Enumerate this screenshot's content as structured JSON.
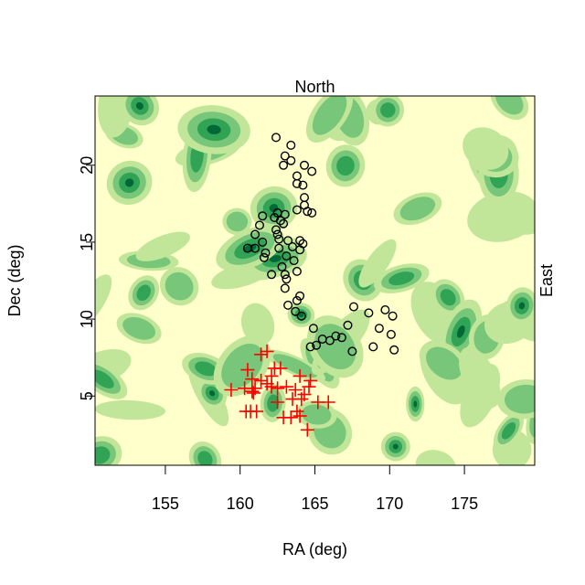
{
  "chart_data": {
    "type": "scatter",
    "title": "North",
    "right_label": "East",
    "xlabel": "RA (deg)",
    "ylabel": "Dec (deg)",
    "xlim": [
      150.3,
      179.7
    ],
    "ylim": [
      0.5,
      24.5
    ],
    "xticks": [
      155,
      160,
      165,
      170,
      175
    ],
    "yticks": [
      5,
      10,
      15,
      20
    ],
    "grid": false,
    "legend": "none",
    "background": {
      "type": "filled-contour",
      "palette": [
        "#ffffcc",
        "#c2e699",
        "#78c679",
        "#31a354",
        "#006837"
      ]
    },
    "series": [
      {
        "marker": "circle",
        "color": "#000000",
        "points": [
          [
            162.4,
            21.8
          ],
          [
            163.4,
            21.3
          ],
          [
            163.0,
            20.6
          ],
          [
            163.4,
            20.3
          ],
          [
            162.9,
            20.0
          ],
          [
            164.3,
            20.0
          ],
          [
            164.8,
            19.6
          ],
          [
            163.8,
            19.3
          ],
          [
            163.8,
            18.8
          ],
          [
            164.2,
            18.7
          ],
          [
            164.3,
            17.9
          ],
          [
            164.3,
            17.4
          ],
          [
            163.8,
            17.1
          ],
          [
            164.5,
            17.0
          ],
          [
            164.8,
            16.9
          ],
          [
            162.5,
            16.9
          ],
          [
            161.5,
            16.7
          ],
          [
            162.3,
            16.6
          ],
          [
            163.0,
            16.8
          ],
          [
            162.7,
            16.4
          ],
          [
            162.9,
            16.2
          ],
          [
            161.3,
            16.1
          ],
          [
            162.4,
            15.8
          ],
          [
            162.5,
            15.5
          ],
          [
            162.6,
            15.2
          ],
          [
            161.0,
            15.5
          ],
          [
            161.5,
            15.0
          ],
          [
            163.2,
            15.1
          ],
          [
            164.0,
            15.1
          ],
          [
            164.2,
            14.9
          ],
          [
            160.5,
            14.6
          ],
          [
            161.0,
            14.6
          ],
          [
            161.7,
            14.3
          ],
          [
            161.6,
            14.0
          ],
          [
            162.6,
            14.6
          ],
          [
            163.5,
            14.7
          ],
          [
            164.0,
            14.5
          ],
          [
            163.1,
            14.1
          ],
          [
            163.6,
            13.8
          ],
          [
            162.8,
            13.4
          ],
          [
            163.0,
            12.9
          ],
          [
            163.1,
            12.6
          ],
          [
            162.1,
            12.9
          ],
          [
            163.8,
            13.1
          ],
          [
            163.0,
            12.0
          ],
          [
            164.0,
            11.5
          ],
          [
            163.8,
            11.2
          ],
          [
            163.2,
            10.9
          ],
          [
            163.7,
            10.5
          ],
          [
            164.1,
            10.2
          ],
          [
            164.9,
            9.4
          ],
          [
            165.5,
            8.7
          ],
          [
            166.0,
            8.6
          ],
          [
            165.1,
            8.3
          ],
          [
            164.7,
            8.2
          ],
          [
            166.4,
            8.9
          ],
          [
            166.8,
            8.8
          ],
          [
            167.2,
            9.6
          ],
          [
            167.6,
            10.8
          ],
          [
            168.6,
            10.4
          ],
          [
            169.7,
            10.6
          ],
          [
            170.2,
            10.2
          ],
          [
            169.3,
            9.4
          ],
          [
            170.1,
            9.0
          ],
          [
            168.9,
            8.2
          ],
          [
            170.3,
            8.0
          ],
          [
            167.5,
            7.9
          ]
        ]
      },
      {
        "marker": "plus",
        "color": "#ff0000",
        "points": [
          [
            161.8,
            7.9
          ],
          [
            161.4,
            7.7
          ],
          [
            162.3,
            6.8
          ],
          [
            162.7,
            6.8
          ],
          [
            160.5,
            6.7
          ],
          [
            160.8,
            6.1
          ],
          [
            162.1,
            6.3
          ],
          [
            161.4,
            6.0
          ],
          [
            161.8,
            5.8
          ],
          [
            161.0,
            5.5
          ],
          [
            160.3,
            5.5
          ],
          [
            160.8,
            5.3
          ],
          [
            159.4,
            5.4
          ],
          [
            160.9,
            5.2
          ],
          [
            162.1,
            5.6
          ],
          [
            162.5,
            5.5
          ],
          [
            163.1,
            5.6
          ],
          [
            164.0,
            6.3
          ],
          [
            164.7,
            6.0
          ],
          [
            164.6,
            5.6
          ],
          [
            163.7,
            5.4
          ],
          [
            164.3,
            5.1
          ],
          [
            162.5,
            4.6
          ],
          [
            163.5,
            4.8
          ],
          [
            164.1,
            4.8
          ],
          [
            165.2,
            4.6
          ],
          [
            165.9,
            4.6
          ],
          [
            160.4,
            4.0
          ],
          [
            160.7,
            4.0
          ],
          [
            161.1,
            4.0
          ],
          [
            163.8,
            4.0
          ],
          [
            164.0,
            3.7
          ],
          [
            162.9,
            3.6
          ],
          [
            163.4,
            3.6
          ],
          [
            164.5,
            2.8
          ]
        ]
      }
    ]
  }
}
